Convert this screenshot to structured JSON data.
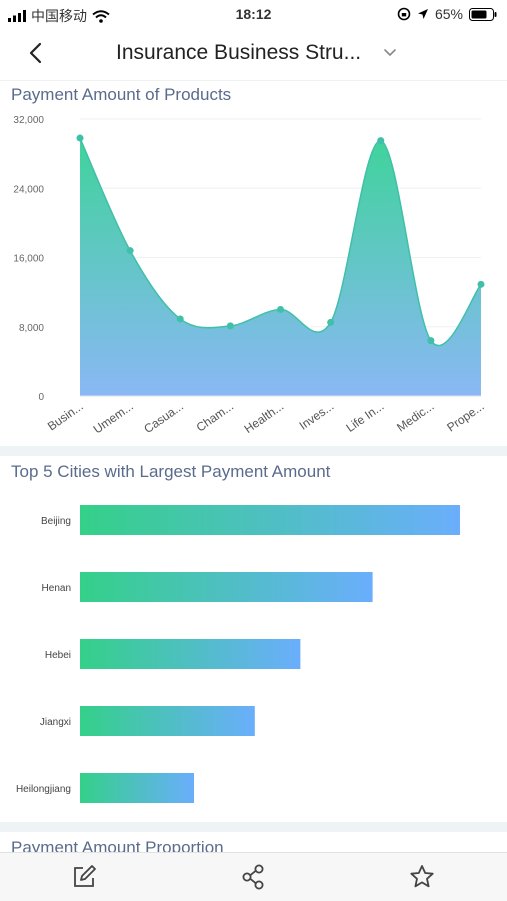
{
  "status_bar": {
    "carrier": "中国移动",
    "time": "18:12",
    "battery": "65%"
  },
  "header": {
    "title": "Insurance Business Stru..."
  },
  "sections": {
    "products_title": "Payment Amount of Products",
    "cities_title": "Top 5 Cities with Largest Payment Amount",
    "proportion_title": "Payment Amount Proportion"
  },
  "chart_data": [
    {
      "type": "area",
      "title": "Payment Amount of Products",
      "categories": [
        "Busin...",
        "Umem...",
        "Casua...",
        "Cham...",
        "Health...",
        "Inves...",
        "Life In...",
        "Medic...",
        "Prope..."
      ],
      "values": [
        29800,
        16800,
        8900,
        8100,
        10000,
        8500,
        29500,
        6400,
        12900
      ],
      "yticks": [
        "0",
        "8,000",
        "16,000",
        "24,000",
        "32,000"
      ],
      "ylim": [
        0,
        32000
      ],
      "colors": {
        "top": "#3fd39b",
        "bottom": "#8ab8f5",
        "line": "#40bfa9"
      }
    },
    {
      "type": "bar",
      "title": "Top 5 Cities with Largest Payment Amount",
      "categories": [
        "Beijing",
        "Henan",
        "Hebei",
        "Jiangxi",
        "Heilongjiang"
      ],
      "values": [
        100,
        77,
        58,
        46,
        30
      ],
      "colors": {
        "start": "#34d089",
        "end": "#6aaefc"
      }
    }
  ]
}
